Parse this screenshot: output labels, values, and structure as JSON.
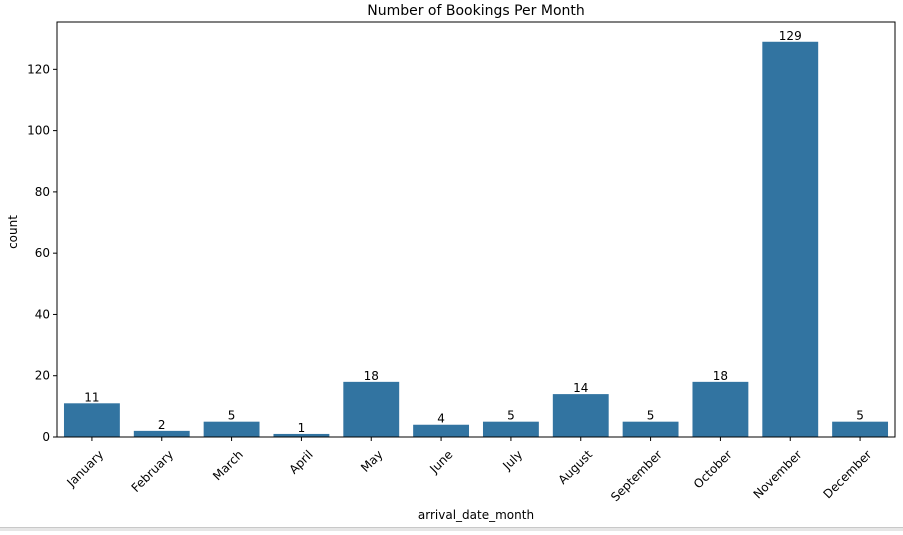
{
  "chart_data": {
    "type": "bar",
    "title": "Number of Bookings Per Month",
    "xlabel": "arrival_date_month",
    "ylabel": "count",
    "categories": [
      "January",
      "February",
      "March",
      "April",
      "May",
      "June",
      "July",
      "August",
      "September",
      "October",
      "November",
      "December"
    ],
    "values": [
      11,
      2,
      5,
      1,
      18,
      4,
      5,
      14,
      5,
      18,
      129,
      5
    ],
    "data_labels": [
      "11",
      "2",
      "5",
      "1",
      "18",
      "4",
      "5",
      "14",
      "5",
      "18",
      "129",
      "5"
    ],
    "y_ticks": [
      0,
      20,
      40,
      60,
      80,
      100,
      120
    ],
    "ylim": [
      0,
      135.45
    ],
    "grid": false,
    "bar_color": "#3274a1"
  }
}
